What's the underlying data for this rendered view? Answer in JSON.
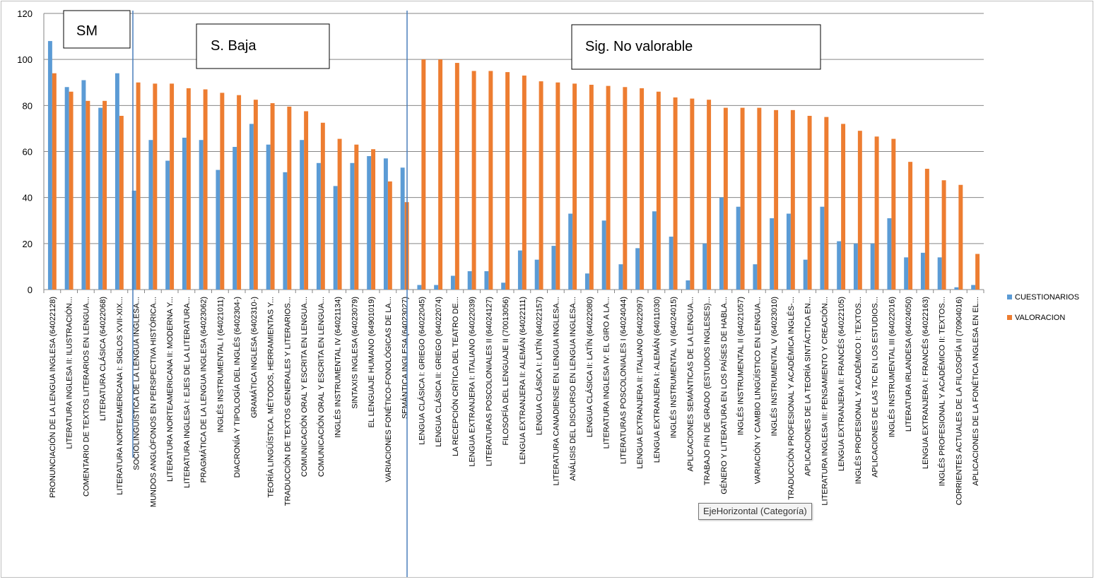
{
  "chart_data": {
    "type": "bar",
    "ylim": [
      0,
      120
    ],
    "yticks": [
      0,
      20,
      40,
      60,
      80,
      100,
      120
    ],
    "grid": true,
    "legend_position": "right",
    "series": [
      {
        "name": "CUESTIONARIOS",
        "color": "#5B9BD5",
        "values": [
          108,
          88,
          91,
          79,
          94,
          43,
          65,
          56,
          66,
          65,
          52,
          62,
          72,
          63,
          51,
          65,
          55,
          45,
          55,
          58,
          57,
          53,
          2,
          2,
          6,
          8,
          8,
          3,
          17,
          13,
          19,
          33,
          7,
          30,
          11,
          18,
          34,
          23,
          4,
          20,
          40,
          36,
          11,
          31,
          33,
          13,
          36,
          21,
          20,
          20,
          31,
          14,
          16,
          14,
          1,
          2
        ]
      },
      {
        "name": "VALORACION",
        "color": "#ED7D31",
        "values": [
          94,
          86,
          82,
          82,
          75.5,
          90,
          89.5,
          89.5,
          87.5,
          87,
          85.5,
          84.5,
          82.5,
          81,
          79.5,
          77.5,
          72.5,
          65.5,
          63,
          61,
          47,
          38,
          100,
          100,
          98.5,
          95,
          95,
          94.5,
          93,
          90.5,
          90,
          89.5,
          89,
          88.5,
          88,
          87.5,
          86,
          83.5,
          83,
          82.5,
          79,
          79,
          79,
          78,
          78,
          75.5,
          75,
          72,
          69,
          66.5,
          65.5,
          55.5,
          52.5,
          47.5,
          45.5,
          15.5
        ]
      }
    ],
    "categories": [
      "PRONUNCIACIÓN DE LA LENGUA INGLESA (64022128)",
      "LITERATURA INGLESA II: ILUSTRACIÓN...",
      "COMENTARIO DE TEXTOS LITERARIOS EN LENGUA...",
      "LITERATURA CLÁSICA (64022068)",
      "LITERATURA NORTEAMERICANA I: SIGLOS XVII-XIX...",
      "SOCIOLINGÜÍSTICA DE LA LENGUA INGLESA...",
      "MUNDOS ANGLÓFONOS EN PERSPECTIVA HISTÓRICA...",
      "LITERATURA NORTEAMERICANA II: MODERNA Y...",
      "LITERATURA INGLESA I: EJES DE LA LITERATURA...",
      "PRAGMÁTICA DE LA LENGUA INGLESA (64023062)",
      "INGLÉS INSTRUMENTAL I (64021011)",
      "DIACRONÍA Y TIPOLOGÍA DEL INGLÉS (6402304-)",
      "GRAMÁTICA INGLESA (6402310-)",
      "TEORÍA LINGÜÍSTICA. MÉTODOS, HERRAMIENTAS Y...",
      "TRADUCCIÓN DE TEXTOS GENERALES Y LITERARIOS...",
      "COMUNICACIÓN ORAL Y ESCRITA EN LENGUA...",
      "COMUNICACIÓN ORAL Y ESCRITA EN LENGUA...",
      "INGLÉS INSTRUMENTAL IV (64021134)",
      "SINTAXIS INGLESA (64023079)",
      "EL LENGUAJE HUMANO (64901019)",
      "VARIACIONES FONÉTICO-FONOLÓGICAS DE LA...",
      "SEMÁNTICA INGLESA (64023027)",
      "LENGUA CLÁSICA I: GRIEGO (64022045)",
      "LENGUA CLÁSICA II: GRIEGO (64022074)",
      "LA RECEPCIÓN CRÍTICA DEL TEATRO DE...",
      "LENGUA EXTRANJERA I: ITALIANO (64022039)",
      "LITERATURAS POSCOLONIALES II (64024127)",
      "FILOSOFÍA DEL LENGUAJE II (70013056)",
      "LENGUA EXTRANJERA II: ALEMÁN (64022111)",
      "LENGUA CLÁSICA I: LATÍN (64022157)",
      "LITERATURA CANADIENSE EN LENGUA INGLESA...",
      "ANÁLISIS DEL DISCURSO EN LENGUA INGLESA...",
      "LENGUA CLÁSICA II: LATÍN (64022080)",
      "LITERATURA INGLESA IV: EL GIRO A LA...",
      "LITERATURAS POSCOLONIALES I (64024044)",
      "LENGUA EXTRANJERA II: ITALIANO (64022097)",
      "LENGUA EXTRANJERA I: ALEMÁN (64011030)",
      "INGLÉS INSTRUMENTAL VI (64024015)",
      "APLICACIONES SEMÁNTICAS DE LA LENGUA...",
      "TRABAJO FIN DE GRADO (ESTUDIOS INGLESES)...",
      "GÉNERO Y LITERATURA EN LOS PAÍSES DE HABLA...",
      "INGLÉS INSTRUMENTAL II (64021057)",
      "VARIACIÓN Y CAMBIO LINGÜÍSTICO EN LENGUA...",
      "INGLÉS INSTRUMENTAL V (64023010)",
      "TRADUCCIÓN PROFESIONAL Y ACADÉMICA INGLÉS-...",
      "APLICACIONES DE LA TEORÍA SINTÁCTICA EN...",
      "LITERATURA INGLESA III: PENSAMIENTO Y CREACIÓN...",
      "LENGUA EXTRANJERA II: FRANCÉS (64022105)",
      "INGLÉS PROFESIONAL Y ACADÉMICO I: TEXTOS...",
      "APLICACIONES DE LAS TIC EN LOS ESTUDIOS...",
      "INGLÉS INSTRUMENTAL III (64022016)",
      "LITERATURA IRLANDESA (64024050)",
      "LENGUA EXTRANJERA I: FRANCÉS (64022163)",
      "INGLÉS PROFESIONAL Y ACADÉMICO II: TEXTOS...",
      "CORRIENTES ACTUALES DE LA FILOSOFÍA II (70904016)",
      "APLICACIONES DE LA FONÉTICA INGLESA EN EL..."
    ],
    "annotations": [
      {
        "text": "SM"
      },
      {
        "text": "S. Baja"
      },
      {
        "text": "Sig. No valorable"
      }
    ],
    "tooltip": "EjeHorizontal (Categoría)"
  }
}
